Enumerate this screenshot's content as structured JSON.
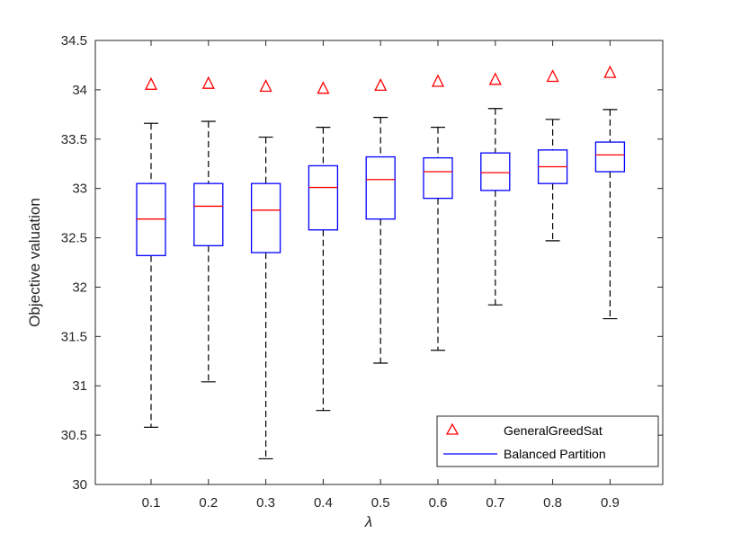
{
  "chart_data": {
    "type": "box",
    "title": "",
    "xlabel": "λ",
    "ylabel": "Objective valuation",
    "categories": [
      "0.1",
      "0.2",
      "0.3",
      "0.4",
      "0.5",
      "0.6",
      "0.7",
      "0.8",
      "0.9"
    ],
    "ylim": [
      30,
      34.5
    ],
    "yticks": [
      30,
      30.5,
      31,
      31.5,
      32,
      32.5,
      33,
      33.5,
      34,
      34.5
    ],
    "ytick_labels": [
      "30",
      "30.5",
      "31",
      "31.5",
      "32",
      "32.5",
      "33",
      "33.5",
      "34",
      "34.5"
    ],
    "grid": false,
    "legend_position": "bottom-right",
    "series": [
      {
        "name": "GeneralGreedSat",
        "kind": "marker",
        "marker": "triangle",
        "color": "#ff0000",
        "values": [
          34.06,
          34.07,
          34.04,
          34.02,
          34.05,
          34.09,
          34.11,
          34.14,
          34.18
        ]
      },
      {
        "name": "Balanced Partition",
        "kind": "box",
        "color": "#0000ff",
        "median_color": "#ff0000",
        "whisker_color": "#000000",
        "boxes": [
          {
            "whisker_low": 30.58,
            "q1": 32.32,
            "median": 32.69,
            "q3": 33.05,
            "whisker_high": 33.66
          },
          {
            "whisker_low": 31.04,
            "q1": 32.42,
            "median": 32.82,
            "q3": 33.05,
            "whisker_high": 33.68
          },
          {
            "whisker_low": 30.26,
            "q1": 32.35,
            "median": 32.78,
            "q3": 33.05,
            "whisker_high": 33.52
          },
          {
            "whisker_low": 30.75,
            "q1": 32.58,
            "median": 33.01,
            "q3": 33.23,
            "whisker_high": 33.62
          },
          {
            "whisker_low": 31.23,
            "q1": 32.69,
            "median": 33.09,
            "q3": 33.32,
            "whisker_high": 33.72
          },
          {
            "whisker_low": 31.36,
            "q1": 32.9,
            "median": 33.17,
            "q3": 33.31,
            "whisker_high": 33.62
          },
          {
            "whisker_low": 31.82,
            "q1": 32.98,
            "median": 33.16,
            "q3": 33.36,
            "whisker_high": 33.81
          },
          {
            "whisker_low": 32.47,
            "q1": 33.05,
            "median": 33.22,
            "q3": 33.39,
            "whisker_high": 33.7
          },
          {
            "whisker_low": 31.68,
            "q1": 33.17,
            "median": 33.34,
            "q3": 33.47,
            "whisker_high": 33.8
          }
        ]
      }
    ]
  }
}
